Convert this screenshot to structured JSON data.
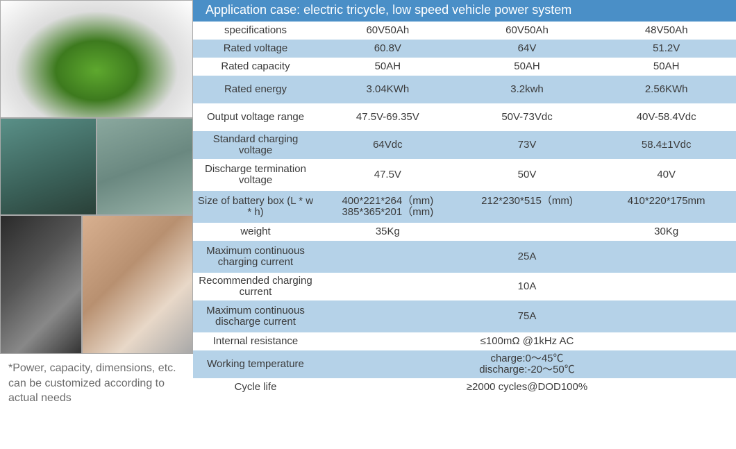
{
  "title": "Application case: electric tricycle, low speed vehicle power system",
  "note": "*Power, capacity, dimensions, etc. can be customized according to actual needs",
  "colors": {
    "titleBg": "#4a8fc7",
    "titleText": "#ffffff",
    "shadedRow": "#b5d2e8",
    "plainRow": "#ffffff",
    "text": "#3a3a3a",
    "noteText": "#6b6b6b"
  },
  "images": {
    "tricycle": "electric-tricycle",
    "battery1": "battery-pack-with-cables",
    "battery2": "grey-battery-box",
    "cargo": "cargo-tricycle",
    "warehouse": "warehouse-battery"
  },
  "rows": [
    {
      "label": "specifications",
      "shaded": false,
      "vals": [
        "60V50Ah",
        "60V50Ah",
        "48V50Ah"
      ]
    },
    {
      "label": "Rated voltage",
      "shaded": true,
      "vals": [
        "60.8V",
        "64V",
        "51.2V"
      ]
    },
    {
      "label": "Rated capacity",
      "shaded": false,
      "vals": [
        "50AH",
        "50AH",
        "50AH"
      ]
    },
    {
      "label": "Rated energy",
      "shaded": true,
      "tall": true,
      "vals": [
        "3.04KWh",
        "3.2kwh",
        "2.56KWh"
      ]
    },
    {
      "label": "Output voltage range",
      "shaded": false,
      "tall": true,
      "vals": [
        "47.5V-69.35V",
        "50V-73Vdc",
        "40V-58.4Vdc"
      ]
    },
    {
      "label": "Standard charging voltage",
      "shaded": true,
      "tall": true,
      "vals": [
        "64Vdc",
        "73V",
        "58.4±1Vdc"
      ]
    },
    {
      "label": "Discharge termination voltage",
      "shaded": false,
      "taller": true,
      "vals": [
        "47.5V",
        "50V",
        "40V"
      ]
    },
    {
      "label": "Size of battery box (L * w * h)",
      "shaded": true,
      "taller": true,
      "vals": [
        "400*221*264（mm)\n385*365*201（mm)",
        "212*230*515（mm)",
        "410*220*175mm"
      ]
    },
    {
      "label": "weight",
      "shaded": false,
      "vals": [
        "35Kg",
        "",
        "30Kg"
      ]
    },
    {
      "label": "Maximum continuous charging current",
      "shaded": true,
      "taller": true,
      "merged": "25A"
    },
    {
      "label": "Recommended charging current",
      "shaded": false,
      "tall": true,
      "merged": "10A"
    },
    {
      "label": "Maximum continuous discharge current",
      "shaded": true,
      "taller": true,
      "merged": "75A"
    },
    {
      "label": "Internal resistance",
      "shaded": false,
      "merged": "≤100mΩ @1kHz AC"
    },
    {
      "label": "Working temperature",
      "shaded": true,
      "tall": true,
      "merged": "charge:0～45℃\ndischarge:-20～50℃"
    },
    {
      "label": "Cycle life",
      "shaded": false,
      "merged": "≥2000 cycles@DOD100%"
    }
  ]
}
